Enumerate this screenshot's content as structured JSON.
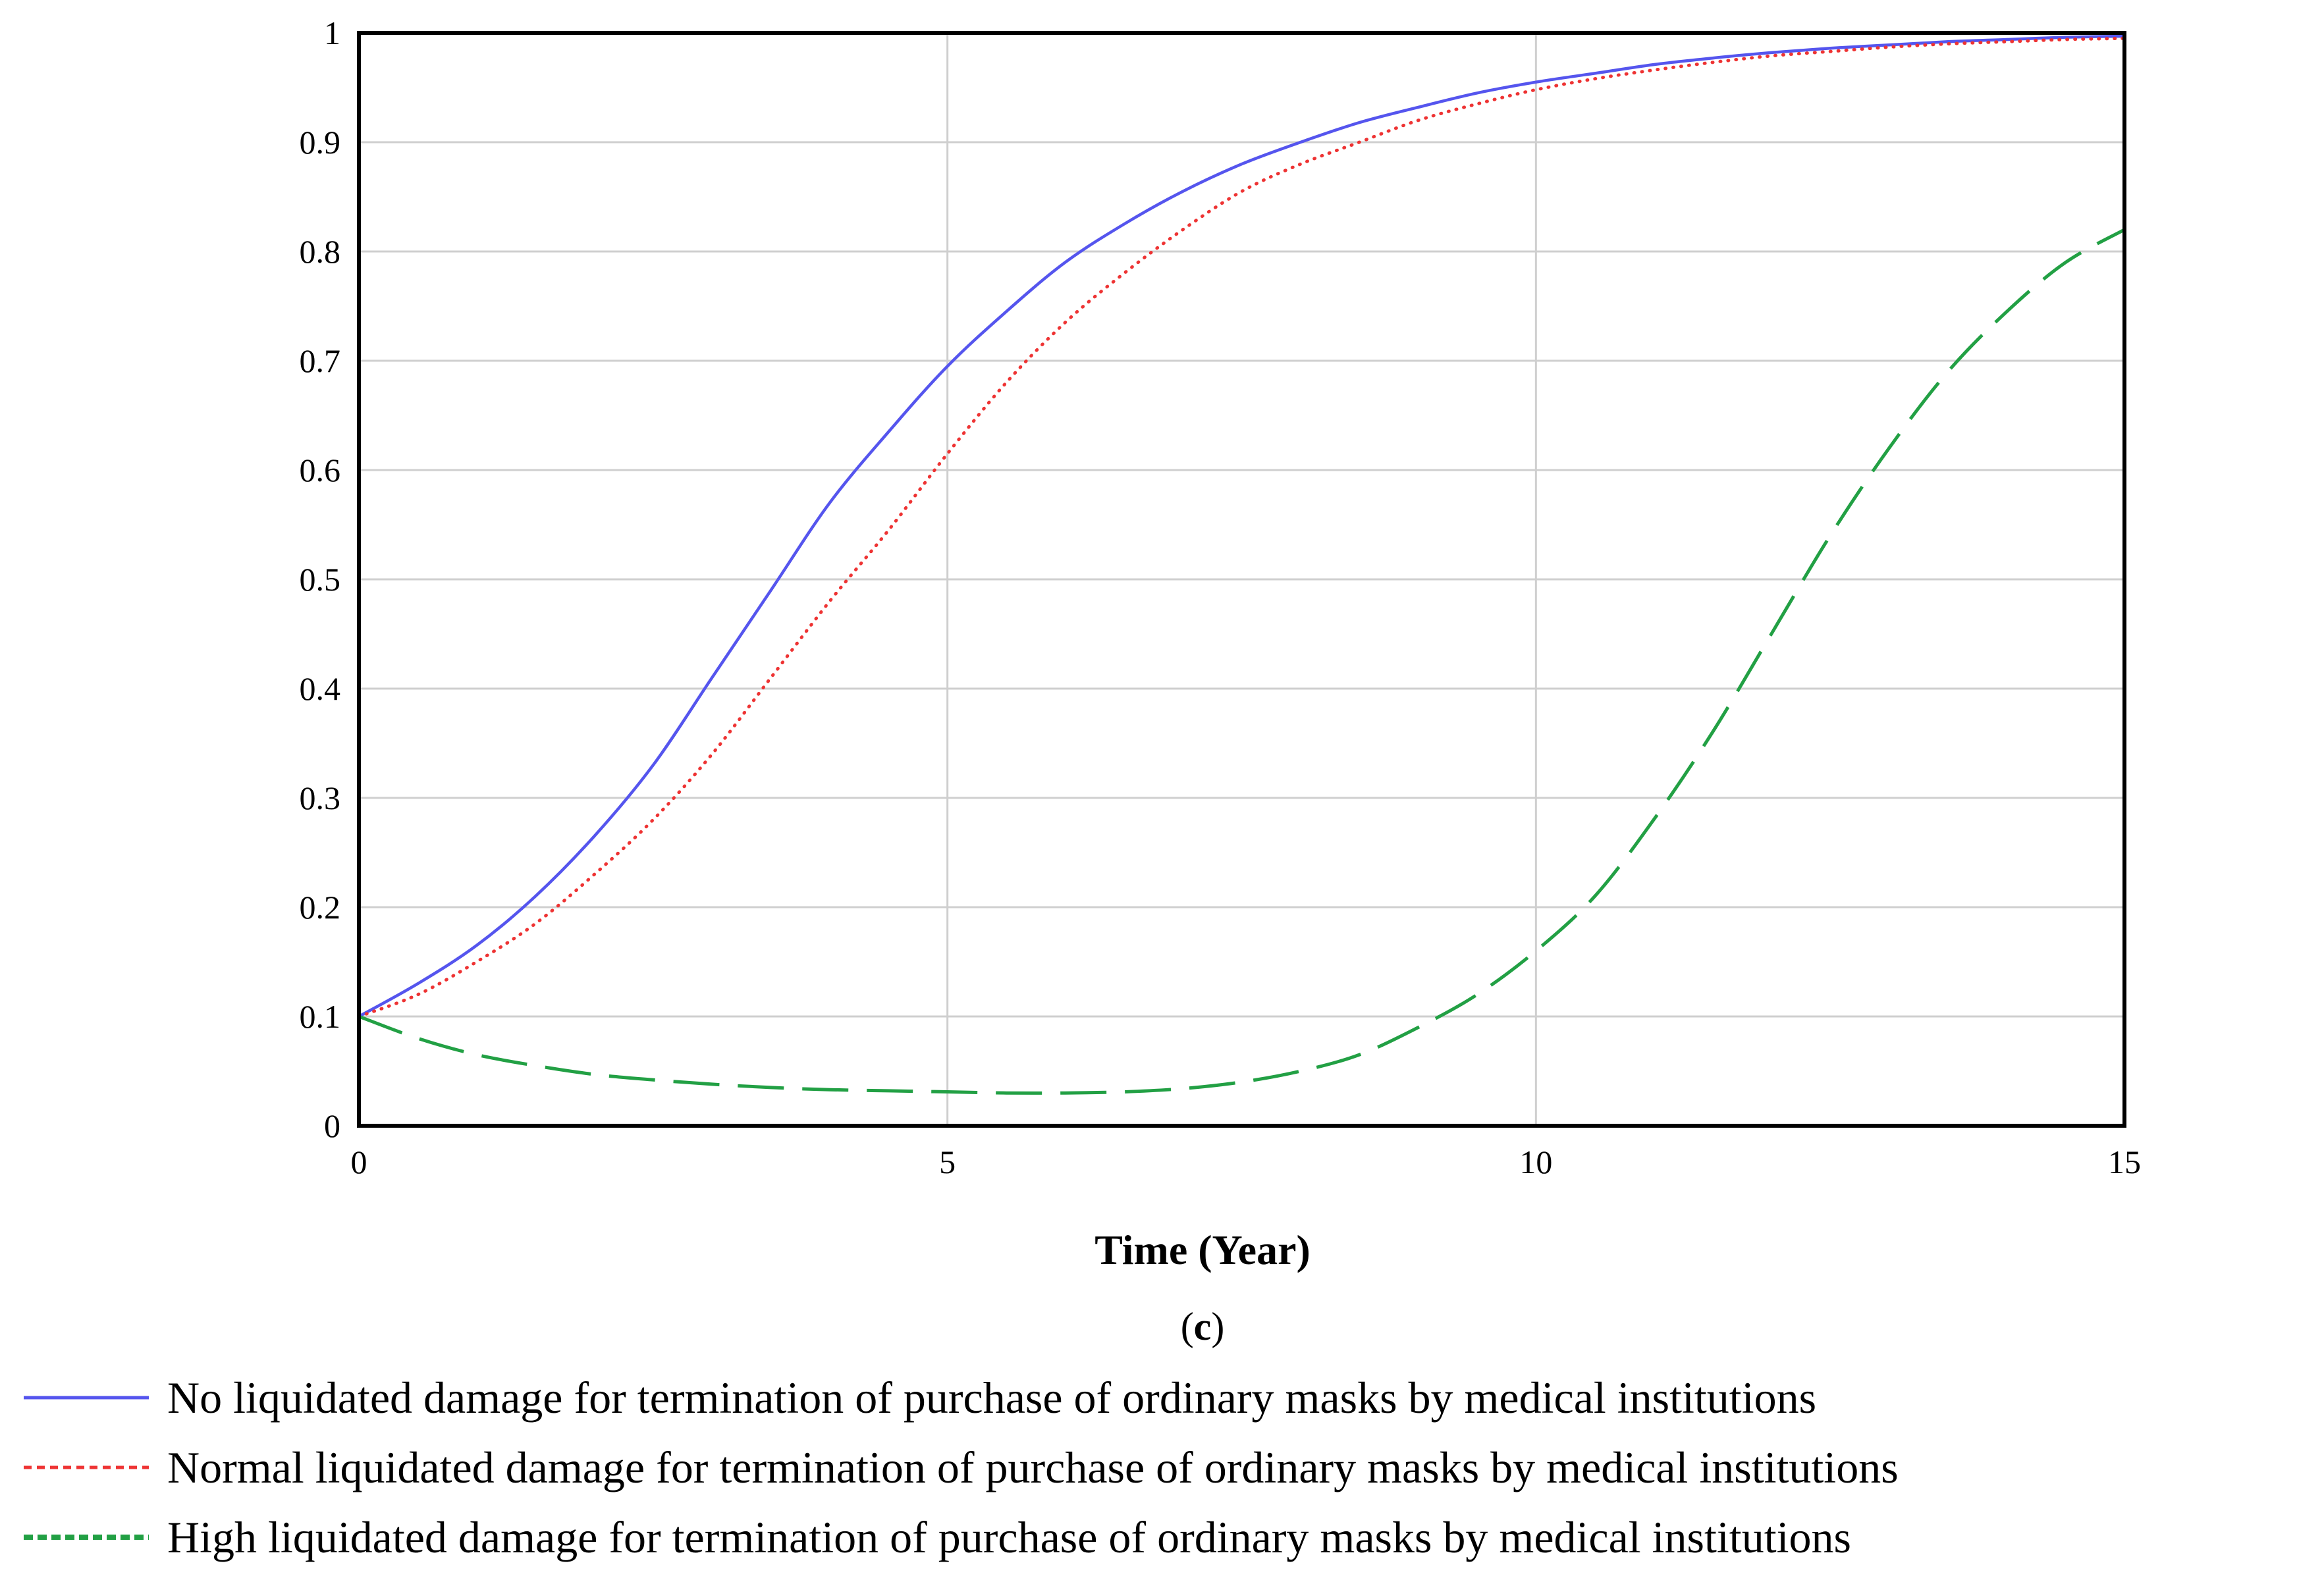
{
  "chart_data": {
    "type": "line",
    "title": "",
    "xlabel": "Time (Year)",
    "ylabel": "",
    "caption": {
      "open": "(",
      "letter": "c",
      "close": ")"
    },
    "xlim": [
      0,
      15
    ],
    "ylim": [
      0,
      1
    ],
    "xticks": [
      0,
      5,
      10,
      15
    ],
    "yticks": [
      0,
      0.1,
      0.2,
      0.3,
      0.4,
      0.5,
      0.6,
      0.7,
      0.8,
      0.9,
      1
    ],
    "grid": true,
    "legend_position": "bottom",
    "x": [
      0,
      0.5,
      1,
      1.5,
      2,
      2.5,
      3,
      3.5,
      4,
      4.5,
      5,
      5.5,
      6,
      6.5,
      7,
      7.5,
      8,
      8.5,
      9,
      9.5,
      10,
      10.5,
      11,
      11.5,
      12,
      12.5,
      13,
      13.5,
      14,
      14.5,
      15
    ],
    "series": [
      {
        "name": "No liquidated damage for termination of purchase of ordinary masks by medical institutions",
        "color": "#5555ee",
        "style": "solid",
        "values": [
          0.1,
          0.13,
          0.165,
          0.21,
          0.265,
          0.33,
          0.41,
          0.49,
          0.57,
          0.635,
          0.695,
          0.745,
          0.79,
          0.825,
          0.855,
          0.88,
          0.9,
          0.918,
          0.932,
          0.945,
          0.955,
          0.963,
          0.971,
          0.977,
          0.982,
          0.986,
          0.989,
          0.992,
          0.994,
          0.996,
          0.997
        ]
      },
      {
        "name": "Normal liquidated damage for termination of purchase of ordinary masks by medical institutions",
        "color": "#ee3333",
        "style": "dotted",
        "values": [
          0.1,
          0.12,
          0.15,
          0.185,
          0.23,
          0.28,
          0.34,
          0.41,
          0.48,
          0.545,
          0.615,
          0.68,
          0.735,
          0.78,
          0.82,
          0.855,
          0.88,
          0.9,
          0.92,
          0.935,
          0.948,
          0.958,
          0.966,
          0.973,
          0.979,
          0.983,
          0.987,
          0.99,
          0.992,
          0.994,
          0.995
        ]
      },
      {
        "name": "High liquidated damage for termination of purchase of ordinary masks by medical institutions",
        "color": "#22a044",
        "style": "dashed",
        "values": [
          0.1,
          0.08,
          0.065,
          0.055,
          0.047,
          0.042,
          0.038,
          0.035,
          0.033,
          0.032,
          0.031,
          0.03,
          0.03,
          0.031,
          0.034,
          0.04,
          0.05,
          0.065,
          0.09,
          0.12,
          0.16,
          0.21,
          0.28,
          0.36,
          0.45,
          0.54,
          0.62,
          0.69,
          0.745,
          0.79,
          0.82
        ]
      }
    ]
  }
}
